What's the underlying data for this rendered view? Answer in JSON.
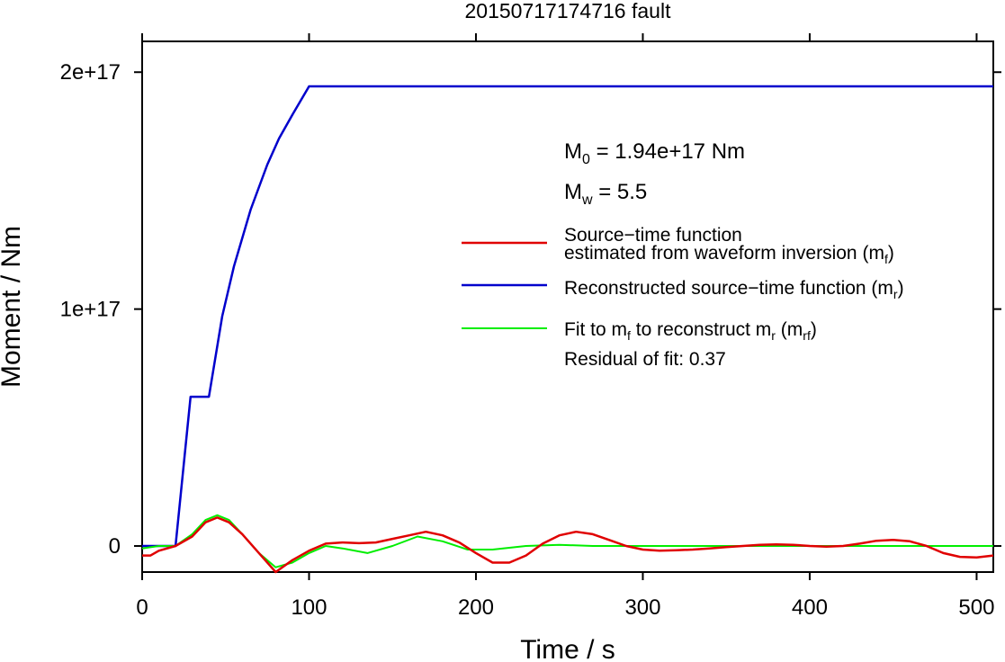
{
  "chart_data": {
    "type": "line",
    "title": "20150717174716 fault",
    "xlabel": "Time / s",
    "ylabel": "Moment / Nm",
    "xlim": [
      0,
      510
    ],
    "ylim": [
      -11000000000000000,
      213000000000000000
    ],
    "x_ticks": [
      0,
      100,
      200,
      300,
      400,
      500
    ],
    "x_tick_labels": [
      "0",
      "100",
      "200",
      "300",
      "400",
      "500"
    ],
    "y_ticks": [
      0,
      100000000000000000,
      200000000000000000
    ],
    "y_tick_labels": [
      "0",
      "1e+17",
      "2e+17"
    ],
    "grid": false,
    "legend_position": "right",
    "annotations": {
      "m0_main": "M",
      "m0_sub": "0",
      "m0_value": " = 1.94e+17 Nm",
      "mw_main": "M",
      "mw_sub": "w",
      "mw_value": " = 5.5",
      "residual": "Residual of fit: 0.37"
    },
    "legend": [
      {
        "line1": "Source−time function",
        "line2_pre": "estimated from waveform inversion (m",
        "line2_sub": "f",
        "line2_post": ")",
        "color": "#e00000"
      },
      {
        "pre": "Reconstructed source−time function (m",
        "sub": "r",
        "post": ")",
        "color": "#0000cc"
      },
      {
        "pre": "Fit to m",
        "sub": "f",
        "mid": " to reconstruct m",
        "sub2": "r",
        "mid2": " (m",
        "sub3": "rf",
        "post": ")",
        "color": "#00ee00"
      }
    ],
    "series": [
      {
        "name": "Reconstructed source−time function (m_r)",
        "color": "#0000cc",
        "x": [
          0,
          20,
          29,
          40,
          48,
          55,
          65,
          75,
          82,
          90,
          100,
          510
        ],
        "y": [
          0,
          0,
          63000000000000000,
          63000000000000000,
          97000000000000000,
          118000000000000000,
          142000000000000000,
          161000000000000000,
          172000000000000000,
          182000000000000000,
          194000000000000000,
          194000000000000000
        ]
      },
      {
        "name": "Source−time function estimated from waveform inversion (m_f)",
        "color": "#e00000",
        "x": [
          0,
          5,
          10,
          20,
          30,
          38,
          45,
          52,
          60,
          70,
          80,
          90,
          100,
          110,
          120,
          130,
          140,
          150,
          160,
          170,
          180,
          190,
          200,
          210,
          220,
          230,
          240,
          250,
          260,
          270,
          280,
          290,
          300,
          310,
          320,
          330,
          340,
          350,
          360,
          370,
          380,
          390,
          400,
          410,
          420,
          430,
          440,
          450,
          460,
          470,
          480,
          490,
          500,
          510
        ],
        "y": [
          -4000000000000000,
          -4000000000000000,
          -2000000000000000,
          0,
          4000000000000000,
          10000000000000000,
          12000000000000000,
          10000000000000000,
          5000000000000000,
          -3000000000000000,
          -11000000000000000,
          -6000000000000000,
          -2000000000000000,
          1000000000000000,
          1500000000000000,
          1200000000000000,
          1500000000000000,
          3000000000000000,
          4500000000000000,
          6000000000000000,
          4500000000000000,
          1500000000000000,
          -3000000000000000,
          -7000000000000000,
          -7000000000000000,
          -4000000000000000,
          1000000000000000,
          4500000000000000,
          6000000000000000,
          5000000000000000,
          2500000000000000,
          0,
          -1500000000000000,
          -2000000000000000,
          -1800000000000000,
          -1500000000000000,
          -1000000000000000,
          -500000000000000,
          0,
          500000000000000,
          700000000000000,
          500000000000000,
          0,
          -300000000000000,
          0,
          1000000000000000,
          2200000000000000,
          2600000000000000,
          2000000000000000,
          0,
          -3000000000000000,
          -4600000000000000,
          -4800000000000000,
          -4000000000000000
        ]
      },
      {
        "name": "Fit to m_f to reconstruct m_r (m_rf)",
        "color": "#00ee00",
        "x": [
          0,
          10,
          20,
          30,
          38,
          45,
          52,
          60,
          70,
          80,
          90,
          100,
          110,
          120,
          135,
          150,
          165,
          180,
          195,
          210,
          230,
          250,
          270,
          300,
          350,
          400,
          450,
          510
        ],
        "y": [
          -1000000000000000,
          0,
          0,
          5000000000000000,
          11000000000000000,
          13000000000000000,
          11000000000000000,
          5000000000000000,
          -3000000000000000,
          -9000000000000000,
          -7000000000000000,
          -3000000000000000,
          0,
          -1000000000000000,
          -3000000000000000,
          0,
          4000000000000000,
          2000000000000000,
          -1500000000000000,
          -1500000000000000,
          0,
          500000000000000,
          0,
          0,
          0,
          0,
          0,
          0
        ]
      }
    ]
  }
}
